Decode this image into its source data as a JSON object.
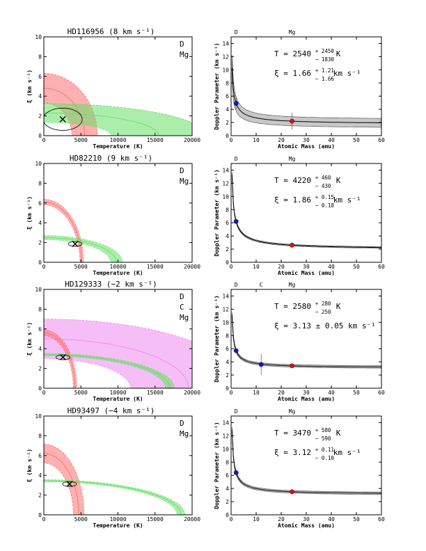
{
  "colors": {
    "D": "#ff7070",
    "Mg": "#66e066",
    "C": "#ee88ee",
    "dmark": "#1515d0",
    "mgmark": "#dd1111",
    "band": "#b0b0b0"
  },
  "chart_data": [
    {
      "type": "scatter",
      "title": "HD116956 (8 km s⁻¹)",
      "left": {
        "xlabel": "Temperature (K)",
        "ylabel": "ξ (km s⁻¹)",
        "xlim": [
          0,
          20000
        ],
        "ylim": [
          0,
          10
        ],
        "xticks": [
          0,
          5000,
          10000,
          15000,
          20000
        ],
        "yticks": [
          0,
          2,
          4,
          6,
          8,
          10
        ],
        "legend": [
          "D",
          "Mg"
        ],
        "bands": [
          {
            "element": "D",
            "T0": 5500,
            "xi0": 4.8,
            "width": 1.5
          },
          {
            "element": "Mg",
            "T0": 15500,
            "xi0": 2.3,
            "width": 0.95
          }
        ],
        "best_fit": {
          "T": 2540,
          "xi": 1.66
        }
      },
      "right": {
        "xlabel": "Atomic Mass (amu)",
        "ylabel": "Doppler Parameter (km s⁻¹)",
        "xlim": [
          0,
          60
        ],
        "ylim": [
          0,
          15
        ],
        "xticks": [
          0,
          10,
          20,
          30,
          40,
          50,
          60
        ],
        "yticks": [
          0,
          2,
          4,
          6,
          8,
          10,
          12,
          14
        ],
        "elements": [
          {
            "name": "D",
            "mass": 2
          },
          {
            "name": "Mg",
            "mass": 24.3
          }
        ],
        "points": [
          {
            "element": "D",
            "mass": 2.0,
            "b": 4.9,
            "err": 0.9
          },
          {
            "element": "Mg",
            "mass": 24.3,
            "b": 2.2,
            "err": 1.3
          }
        ],
        "T": "2540",
        "T_plus": "2450",
        "T_minus": "1830",
        "xi": "1.66",
        "xi_plus": "1.21",
        "xi_minus": "1.66",
        "xi_pm": ""
      }
    },
    {
      "type": "scatter",
      "title": "HD82210 (9 km s⁻¹)",
      "left": {
        "xlabel": "Temperature (K)",
        "ylabel": "ξ (km s⁻¹)",
        "xlim": [
          0,
          20000
        ],
        "ylim": [
          0,
          10
        ],
        "xticks": [
          0,
          5000,
          10000,
          15000,
          20000
        ],
        "yticks": [
          0,
          2,
          4,
          6,
          8,
          10
        ],
        "legend": [
          "D",
          "Mg"
        ],
        "bands": [
          {
            "element": "D",
            "T0": 5100,
            "xi0": 6.1,
            "width": 0.28
          },
          {
            "element": "Mg",
            "T0": 9800,
            "xi0": 2.5,
            "width": 0.2
          }
        ],
        "best_fit": {
          "T": 4220,
          "xi": 1.86
        }
      },
      "right": {
        "xlabel": "Atomic Mass (amu)",
        "ylabel": "Doppler Parameter (km s⁻¹)",
        "xlim": [
          0,
          60
        ],
        "ylim": [
          0,
          15
        ],
        "xticks": [
          0,
          10,
          20,
          30,
          40,
          50,
          60
        ],
        "yticks": [
          0,
          2,
          4,
          6,
          8,
          10,
          12,
          14
        ],
        "elements": [
          {
            "name": "D",
            "mass": 2
          },
          {
            "name": "Mg",
            "mass": 24.3
          }
        ],
        "points": [
          {
            "element": "D",
            "mass": 2.0,
            "b": 6.2,
            "err": 0.25
          },
          {
            "element": "Mg",
            "mass": 24.3,
            "b": 2.6,
            "err": 0.1
          }
        ],
        "T": "4220",
        "T_plus": "460",
        "T_minus": "430",
        "xi": "1.86",
        "xi_plus": "0.15",
        "xi_minus": "0.18",
        "xi_pm": ""
      }
    },
    {
      "type": "scatter",
      "title": "HD129333 (−2 km s⁻¹)",
      "left": {
        "xlabel": "Temperature (K)",
        "ylabel": "ξ (km s⁻¹)",
        "xlim": [
          0,
          20000
        ],
        "ylim": [
          0,
          10
        ],
        "xticks": [
          0,
          5000,
          10000,
          15000,
          20000
        ],
        "yticks": [
          0,
          2,
          4,
          6,
          8,
          10
        ],
        "legend": [
          "D",
          "C",
          "Mg"
        ],
        "bands": [
          {
            "element": "C",
            "T0": 19500,
            "xi0": 5.0,
            "width": 2.0
          },
          {
            "element": "D",
            "T0": 4200,
            "xi0": 5.6,
            "width": 0.3
          },
          {
            "element": "Mg",
            "T0": 17000,
            "xi0": 3.4,
            "width": 0.12
          }
        ],
        "best_fit": {
          "T": 2580,
          "xi": 3.13
        }
      },
      "right": {
        "xlabel": "Atomic Mass (amu)",
        "ylabel": "Doppler Parameter (km s⁻¹)",
        "xlim": [
          0,
          60
        ],
        "ylim": [
          0,
          15
        ],
        "xticks": [
          0,
          10,
          20,
          30,
          40,
          50,
          60
        ],
        "yticks": [
          0,
          2,
          4,
          6,
          8,
          10,
          12,
          14
        ],
        "elements": [
          {
            "name": "D",
            "mass": 2
          },
          {
            "name": "C",
            "mass": 12
          },
          {
            "name": "Mg",
            "mass": 24.3
          }
        ],
        "points": [
          {
            "element": "D",
            "mass": 2.0,
            "b": 5.7,
            "err": 0.15
          },
          {
            "element": "C",
            "mass": 12.0,
            "b": 3.6,
            "err": 1.6
          },
          {
            "element": "Mg",
            "mass": 24.3,
            "b": 3.4,
            "err": 0.1
          }
        ],
        "T": "2580",
        "T_plus": "280",
        "T_minus": "250",
        "xi": "",
        "xi_plus": "",
        "xi_minus": "",
        "xi_pm": "3.13 ± 0.05"
      }
    },
    {
      "type": "scatter",
      "title": "HD93497 (−4 km s⁻¹)",
      "left": {
        "xlabel": "Temperature (K)",
        "ylabel": "ξ (km s⁻¹)",
        "xlim": [
          0,
          20000
        ],
        "ylim": [
          0,
          10
        ],
        "xticks": [
          0,
          5000,
          10000,
          15000,
          20000
        ],
        "yticks": [
          0,
          2,
          4,
          6,
          8,
          10
        ],
        "legend": [
          "D",
          "Mg"
        ],
        "bands": [
          {
            "element": "D",
            "T0": 4700,
            "xi0": 6.2,
            "width": 0.95
          },
          {
            "element": "Mg",
            "T0": 18500,
            "xi0": 3.45,
            "width": 0.1
          }
        ],
        "best_fit": {
          "T": 3470,
          "xi": 3.12
        }
      },
      "right": {
        "xlabel": "Atomic Mass (amu)",
        "ylabel": "Doppler Parameter (km s⁻¹)",
        "xlim": [
          0,
          60
        ],
        "ylim": [
          0,
          15
        ],
        "xticks": [
          0,
          10,
          20,
          30,
          40,
          50,
          60
        ],
        "yticks": [
          0,
          2,
          4,
          6,
          8,
          10,
          12,
          14
        ],
        "elements": [
          {
            "name": "D",
            "mass": 2
          },
          {
            "name": "Mg",
            "mass": 24.3
          }
        ],
        "points": [
          {
            "element": "D",
            "mass": 2.0,
            "b": 6.4,
            "err": 0.2
          },
          {
            "element": "Mg",
            "mass": 24.3,
            "b": 3.5,
            "err": 0.08
          }
        ],
        "T": "3470",
        "T_plus": "580",
        "T_minus": "590",
        "xi": "3.12",
        "xi_plus": "0.11",
        "xi_minus": "0.10",
        "xi_pm": ""
      }
    }
  ],
  "labels": {
    "T_prefix": "T = ",
    "T_unit": "K",
    "xi_prefix": "ξ = ",
    "xi_unit": "km s⁻¹"
  }
}
